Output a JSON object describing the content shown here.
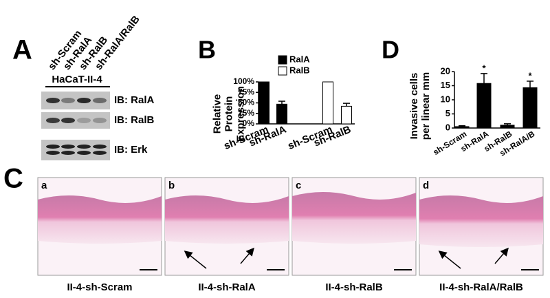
{
  "figure": {
    "panel_labels": [
      "A",
      "B",
      "C",
      "D"
    ],
    "blot": {
      "lanes": [
        "sh-Scram",
        "sh-RalA",
        "sh-RalB",
        "sh-RalA/RalB"
      ],
      "cell_line": "HaCaT-II-4",
      "probes": [
        "IB: RalA",
        "IB: RalB",
        "IB: Erk"
      ]
    },
    "histology": {
      "panels": [
        {
          "letter": "a",
          "caption": "II-4-sh-Scram"
        },
        {
          "letter": "b",
          "caption": "II-4-sh-RalA"
        },
        {
          "letter": "c",
          "caption": "II-4-sh-RalB"
        },
        {
          "letter": "d",
          "caption": "II-4-sh-RalA/RalB"
        }
      ]
    }
  },
  "chart_data": [
    {
      "type": "bar",
      "ylabel": "Relative Protein Expression",
      "categories": [
        "sh-Scram",
        "sh-RalA",
        "sh-Scram",
        "sh-RalB"
      ],
      "series": [
        {
          "name": "RalA",
          "color": "#000000",
          "values": [
            100,
            47,
            null,
            null
          ],
          "errors": [
            null,
            7,
            null,
            null
          ]
        },
        {
          "name": "RalB",
          "color": "#ffffff",
          "values": [
            null,
            null,
            100,
            42
          ],
          "errors": [
            null,
            null,
            null,
            7
          ]
        }
      ],
      "ylim": [
        0,
        100
      ],
      "yticks": [
        {
          "value": 0,
          "label": "0%"
        },
        {
          "value": 25,
          "label": "25%"
        },
        {
          "value": 50,
          "label": "50%"
        },
        {
          "value": 75,
          "label": "75%"
        },
        {
          "value": 100,
          "label": "100%"
        }
      ],
      "legend": "upper left"
    },
    {
      "type": "bar",
      "ylabel": "Invasive cells per linear mm",
      "categories": [
        "sh-Scram",
        "sh-RalA",
        "sh-RalB",
        "sh-RalA/B"
      ],
      "values": [
        0.5,
        15.8,
        1,
        14.3
      ],
      "errors": [
        0.3,
        3.5,
        0.5,
        2.3
      ],
      "annotations": [
        null,
        "*",
        null,
        "*"
      ],
      "color": "#000000",
      "ylim": [
        0,
        20
      ],
      "yticks": [
        0,
        5,
        10,
        15,
        20
      ]
    }
  ]
}
